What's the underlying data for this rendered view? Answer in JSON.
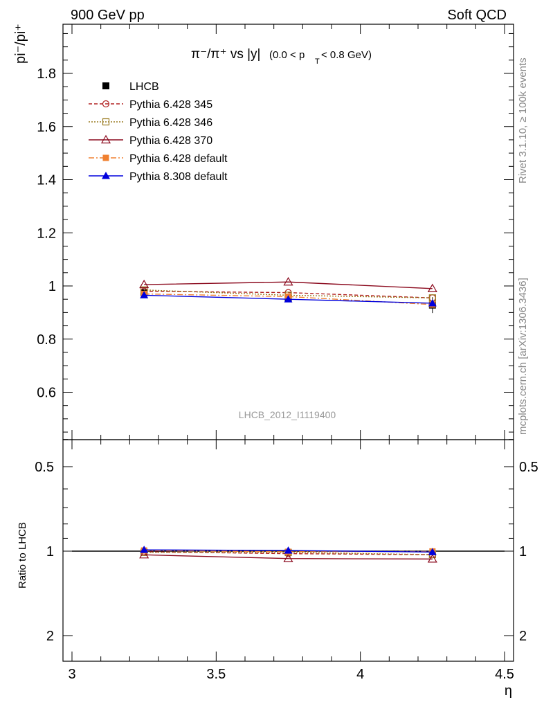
{
  "header": {
    "left": "900 GeV pp",
    "right": "Soft QCD"
  },
  "side_labels": {
    "rivet": "Rivet 3.1.10, ≥ 100k events",
    "mcplots": "mcplots.cern.ch [arXiv:1306.3436]"
  },
  "chart_data": {
    "type": "line",
    "title_main": "π⁻/π⁺ vs |y|",
    "title_cut": "(0.0 < p",
    "title_cut_sub": "T",
    "title_cut_end": " < 0.8 GeV)",
    "ylabel": "pi⁻/pi⁺",
    "ratio_ylabel": "Ratio to LHCB",
    "xlabel": "η",
    "watermark": "LHCB_2012_I1119400",
    "xlim": [
      3.0,
      4.5
    ],
    "ylim": [
      0.44,
      2.0
    ],
    "ratio_ylim": [
      0.4,
      2.4
    ],
    "x_ticks": [
      "3",
      "3.5",
      "4",
      "4.5"
    ],
    "y_ticks": [
      "0.6",
      "0.8",
      "1",
      "1.2",
      "1.4",
      "1.6",
      "1.8"
    ],
    "ratio_y_ticks": [
      "0.5",
      "1",
      "2"
    ],
    "x": [
      3.25,
      3.75,
      4.25
    ],
    "reference": {
      "name": "LHCB",
      "values": [
        0.975,
        0.955,
        0.928
      ],
      "errors": [
        0.01,
        0.012,
        0.03
      ],
      "color": "#000000"
    },
    "series": [
      {
        "name": "Pythia 6.428 345",
        "values": [
          0.98,
          0.975,
          0.955
        ],
        "color": "#b22222",
        "dash": "5,3",
        "marker": "circle-open"
      },
      {
        "name": "Pythia 6.428 346",
        "values": [
          0.985,
          0.965,
          0.955
        ],
        "color": "#9a7a20",
        "dash": "2,2",
        "marker": "square-open"
      },
      {
        "name": "Pythia 6.428 370",
        "values": [
          1.005,
          1.015,
          0.99
        ],
        "color": "#8b0a1e",
        "dash": "",
        "marker": "triangle-open"
      },
      {
        "name": "Pythia 6.428 default",
        "values": [
          0.97,
          0.96,
          0.93
        ],
        "color": "#f08030",
        "dash": "8,3,2,3",
        "marker": "square-filled"
      },
      {
        "name": "Pythia 8.308 default",
        "values": [
          0.965,
          0.95,
          0.935
        ],
        "color": "#0000dd",
        "dash": "",
        "marker": "triangle-filled"
      }
    ]
  }
}
